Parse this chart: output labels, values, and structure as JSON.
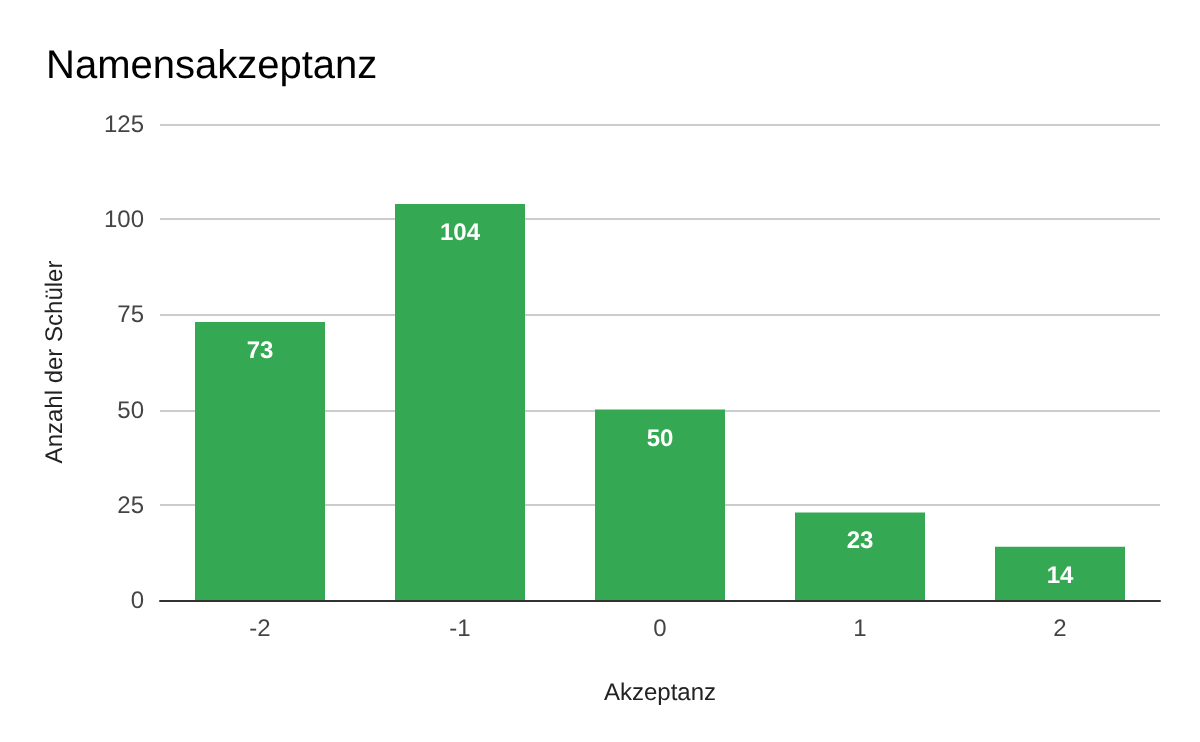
{
  "chart_data": {
    "type": "bar",
    "title": "Namensakzeptanz",
    "xlabel": "Akzeptanz",
    "ylabel": "Anzahl der Schüler",
    "categories": [
      "-2",
      "-1",
      "0",
      "1",
      "2"
    ],
    "values": [
      73,
      104,
      50,
      23,
      14
    ],
    "color": "#34a853",
    "ylim": [
      0,
      125
    ],
    "yticks": [
      0,
      25,
      50,
      75,
      100,
      125
    ],
    "grid": "y",
    "data_labels": true
  }
}
